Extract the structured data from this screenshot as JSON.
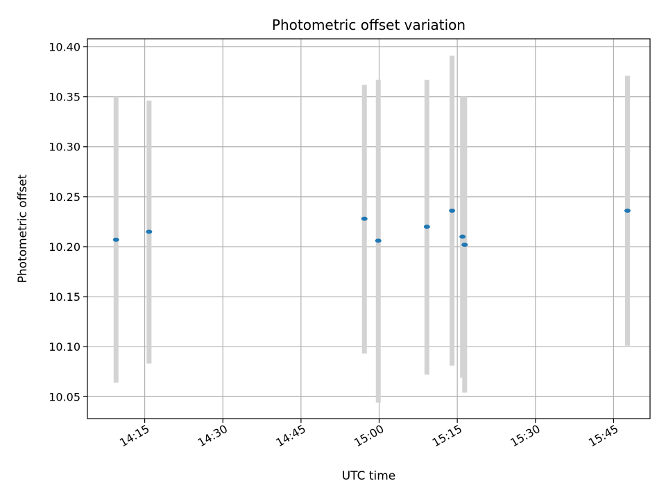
{
  "chart_data": {
    "type": "scatter",
    "title": "Photometric offset variation",
    "xlabel": "UTC time",
    "ylabel": "Photometric offset",
    "x_axis_type": "time",
    "xlim": [
      "14:04",
      "15:52"
    ],
    "ylim": [
      10.028,
      10.408
    ],
    "grid": true,
    "x_ticks": [
      "14:15",
      "14:30",
      "14:45",
      "15:00",
      "15:15",
      "15:30",
      "15:45"
    ],
    "y_ticks": [
      "10.05",
      "10.10",
      "10.15",
      "10.20",
      "10.25",
      "10.30",
      "10.35",
      "10.40"
    ],
    "colors": {
      "marker": "#1f77b4",
      "errorbar": "#d3d3d3",
      "grid": "#b0b0b0"
    },
    "points": [
      {
        "x": "14:09:30",
        "y": 10.207,
        "ylow": 10.064,
        "yhigh": 10.35
      },
      {
        "x": "14:15:50",
        "y": 10.215,
        "ylow": 10.083,
        "yhigh": 10.346
      },
      {
        "x": "14:57:10",
        "y": 10.228,
        "ylow": 10.093,
        "yhigh": 10.362
      },
      {
        "x": "14:59:50",
        "y": 10.206,
        "ylow": 10.044,
        "yhigh": 10.367
      },
      {
        "x": "15:09:10",
        "y": 10.22,
        "ylow": 10.072,
        "yhigh": 10.367
      },
      {
        "x": "15:14:00",
        "y": 10.236,
        "ylow": 10.081,
        "yhigh": 10.391
      },
      {
        "x": "15:16:00",
        "y": 10.21,
        "ylow": 10.069,
        "yhigh": 10.35
      },
      {
        "x": "15:16:25",
        "y": 10.202,
        "ylow": 10.054,
        "yhigh": 10.35
      },
      {
        "x": "15:47:40",
        "y": 10.236,
        "ylow": 10.101,
        "yhigh": 10.371
      }
    ]
  }
}
